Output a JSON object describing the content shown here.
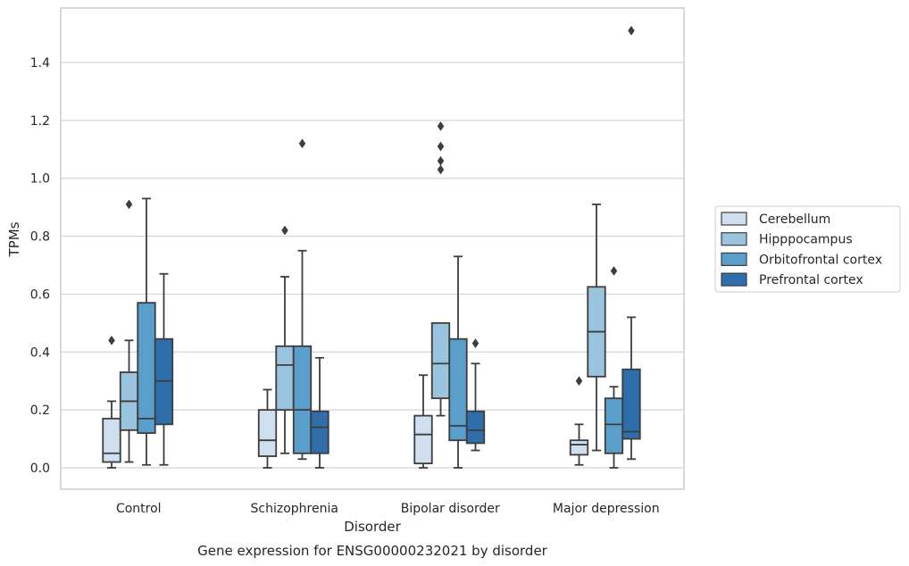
{
  "chart_data": {
    "type": "box",
    "title": "",
    "caption": "Gene expression for ENSG00000232021 by disorder",
    "xlabel": "Disorder",
    "ylabel": "TPMs",
    "ylim": [
      -0.07,
      1.6
    ],
    "yticks": [
      "0.0",
      "0.2",
      "0.4",
      "0.6",
      "0.8",
      "1.0",
      "1.2",
      "1.4"
    ],
    "grid": "horizontal",
    "legend_position": "right",
    "categories": [
      "Control",
      "Schizophrenia",
      "Bipolar disorder",
      "Major depression"
    ],
    "series": [
      {
        "name": "Cerebellum",
        "color": "#cfdff0",
        "boxes": [
          {
            "whisker_low": 0.0,
            "q1": 0.02,
            "median": 0.05,
            "q3": 0.17,
            "whisker_high": 0.23,
            "outliers": [
              0.44
            ]
          },
          {
            "whisker_low": 0.0,
            "q1": 0.04,
            "median": 0.095,
            "q3": 0.2,
            "whisker_high": 0.27,
            "outliers": []
          },
          {
            "whisker_low": 0.0,
            "q1": 0.015,
            "median": 0.115,
            "q3": 0.18,
            "whisker_high": 0.32,
            "outliers": []
          },
          {
            "whisker_low": 0.01,
            "q1": 0.045,
            "median": 0.08,
            "q3": 0.095,
            "whisker_high": 0.15,
            "outliers": [
              0.3
            ]
          }
        ]
      },
      {
        "name": "Hipppocampus",
        "color": "#9ac3dd",
        "boxes": [
          {
            "whisker_low": 0.02,
            "q1": 0.13,
            "median": 0.23,
            "q3": 0.33,
            "whisker_high": 0.44,
            "outliers": [
              0.91
            ]
          },
          {
            "whisker_low": 0.05,
            "q1": 0.2,
            "median": 0.355,
            "q3": 0.42,
            "whisker_high": 0.66,
            "outliers": [
              0.82
            ]
          },
          {
            "whisker_low": 0.18,
            "q1": 0.24,
            "median": 0.36,
            "q3": 0.5,
            "whisker_high": 0.5,
            "outliers": [
              1.03,
              1.06,
              1.11,
              1.18
            ]
          },
          {
            "whisker_low": 0.06,
            "q1": 0.315,
            "median": 0.47,
            "q3": 0.625,
            "whisker_high": 0.91,
            "outliers": []
          }
        ]
      },
      {
        "name": "Orbitofrontal cortex",
        "color": "#5a9ecb",
        "boxes": [
          {
            "whisker_low": 0.01,
            "q1": 0.12,
            "median": 0.17,
            "q3": 0.57,
            "whisker_high": 0.93,
            "outliers": []
          },
          {
            "whisker_low": 0.03,
            "q1": 0.05,
            "median": 0.2,
            "q3": 0.42,
            "whisker_high": 0.75,
            "outliers": [
              1.12
            ]
          },
          {
            "whisker_low": 0.0,
            "q1": 0.095,
            "median": 0.145,
            "q3": 0.445,
            "whisker_high": 0.73,
            "outliers": []
          },
          {
            "whisker_low": 0.0,
            "q1": 0.05,
            "median": 0.15,
            "q3": 0.24,
            "whisker_high": 0.28,
            "outliers": [
              0.68
            ]
          }
        ]
      },
      {
        "name": "Prefrontal cortex",
        "color": "#2d6eab",
        "boxes": [
          {
            "whisker_low": 0.01,
            "q1": 0.15,
            "median": 0.3,
            "q3": 0.445,
            "whisker_high": 0.67,
            "outliers": []
          },
          {
            "whisker_low": 0.0,
            "q1": 0.05,
            "median": 0.14,
            "q3": 0.195,
            "whisker_high": 0.38,
            "outliers": []
          },
          {
            "whisker_low": 0.06,
            "q1": 0.085,
            "median": 0.13,
            "q3": 0.195,
            "whisker_high": 0.36,
            "outliers": [
              0.43
            ]
          },
          {
            "whisker_low": 0.03,
            "q1": 0.1,
            "median": 0.125,
            "q3": 0.34,
            "whisker_high": 0.52,
            "outliers": [
              1.51
            ]
          }
        ]
      }
    ]
  }
}
